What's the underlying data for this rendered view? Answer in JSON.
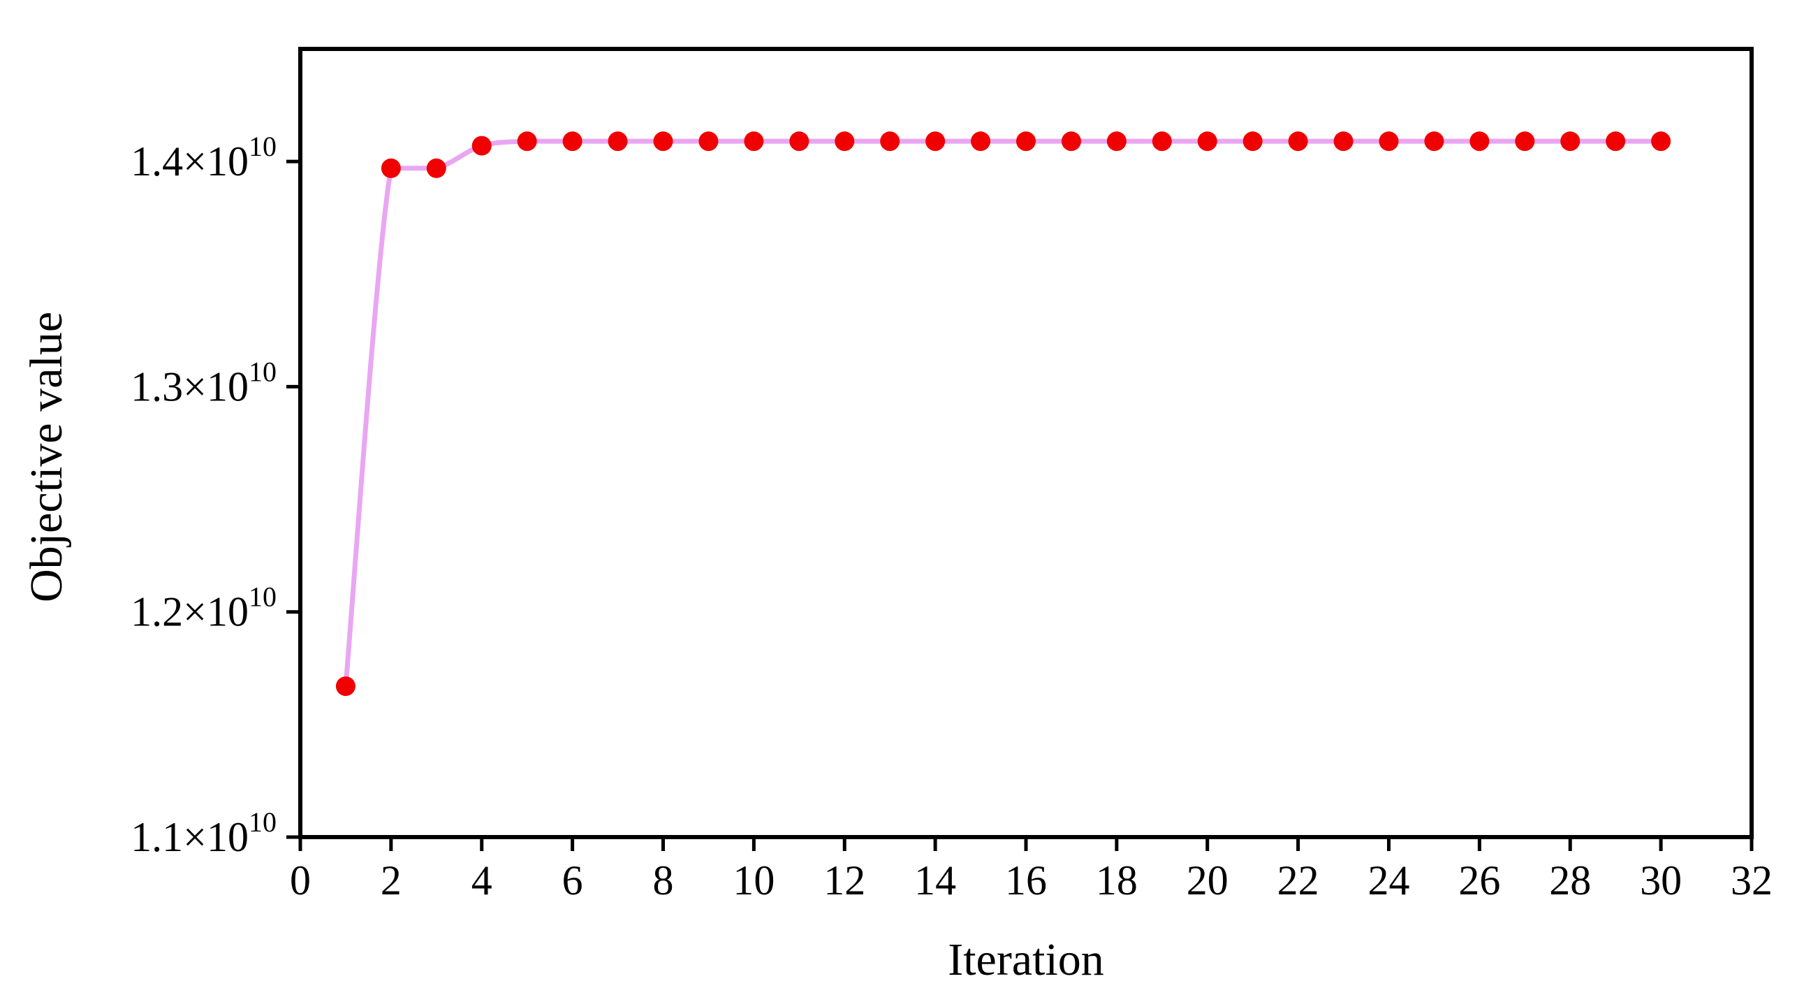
{
  "chart_data": {
    "type": "line",
    "title": "",
    "xlabel": "Iteration",
    "ylabel": "Objective value",
    "xlim": [
      0,
      32
    ],
    "ylim": [
      11000000000.0,
      14500000000.0
    ],
    "x_ticks": [
      0,
      2,
      4,
      6,
      8,
      10,
      12,
      14,
      16,
      18,
      20,
      22,
      24,
      26,
      28,
      30,
      32
    ],
    "y_ticks": [
      {
        "value": 11000000000.0,
        "mantissa": "1.1×10",
        "exponent": "10"
      },
      {
        "value": 12000000000.0,
        "mantissa": "1.2×10",
        "exponent": "10"
      },
      {
        "value": 13000000000.0,
        "mantissa": "1.3×10",
        "exponent": "10"
      },
      {
        "value": 14000000000.0,
        "mantissa": "1.4×10",
        "exponent": "10"
      }
    ],
    "grid": false,
    "line_style": "smooth",
    "series": [
      {
        "line_color": "#E9A6F2",
        "marker_color": "#F00000",
        "x": [
          1,
          2,
          3,
          4,
          5,
          6,
          7,
          8,
          9,
          10,
          11,
          12,
          13,
          14,
          15,
          16,
          17,
          18,
          19,
          20,
          21,
          22,
          23,
          24,
          25,
          26,
          27,
          28,
          29,
          30
        ],
        "values": [
          11670000000.0,
          13970000000.0,
          13970000000.0,
          14070000000.0,
          14090000000.0,
          14090000000.0,
          14090000000.0,
          14090000000.0,
          14090000000.0,
          14090000000.0,
          14090000000.0,
          14090000000.0,
          14090000000.0,
          14090000000.0,
          14090000000.0,
          14090000000.0,
          14090000000.0,
          14090000000.0,
          14090000000.0,
          14090000000.0,
          14090000000.0,
          14090000000.0,
          14090000000.0,
          14090000000.0,
          14090000000.0,
          14090000000.0,
          14090000000.0,
          14090000000.0,
          14090000000.0,
          14090000000.0
        ]
      }
    ]
  }
}
